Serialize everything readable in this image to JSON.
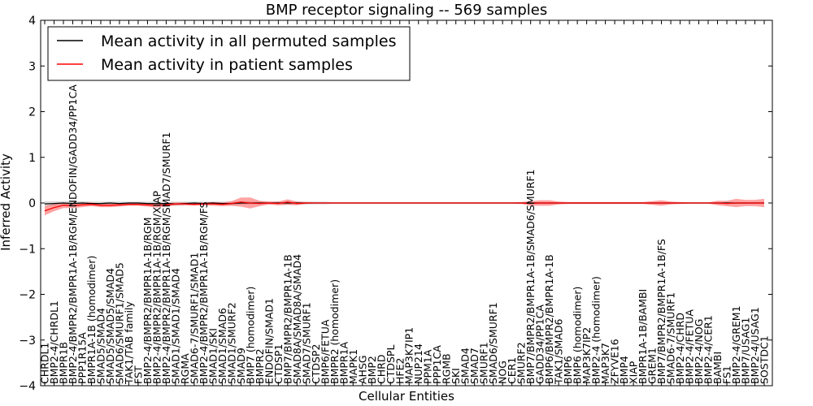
{
  "chart_data": {
    "type": "line",
    "title": "BMP receptor signaling -- 569 samples",
    "xlabel": "Cellular Entities",
    "ylabel": "Inferred Activity",
    "ylim": [
      -4,
      4
    ],
    "yticks": [
      -4,
      -3,
      -2,
      -1,
      0,
      1,
      2,
      3,
      4
    ],
    "ytick_labels": [
      "−4",
      "−3",
      "−2",
      "−1",
      "0",
      "1",
      "2",
      "3",
      "4"
    ],
    "legend_position": "top-left",
    "categories": [
      "CHRDL1",
      "BMP2-4/CHRDL1",
      "BMPR1B",
      "BMP2-4/BMPR2/BMPR1A-1B/RGM/ENDOFIN/GADD34/PP1CA",
      "PPP1R15A",
      "BMPR1A-1B (homodimer)",
      "SMAD5/SMAD4",
      "SMAD5/SMAD5/SMAD4",
      "SMAD6/SMURF1/SMAD5",
      "TAK1/TAB family",
      "FST",
      "BMP2-4/BMPR2/BMPR1A-1B/RGM",
      "BMP2-4/BMPR2/BMPR1A-1B/RGM/XIAP",
      "BMP2-4/BMPR2/BMPR1A-1B/RGM/SMAD7/SMURF1",
      "SMAD1/SMAD1/SMAD4",
      "RGMA",
      "SMAD6-7/SMURF1/SMAD1",
      "BMP2-4/BMPR2/BMPR1A-1B/RGM/FS",
      "SMAD1/SKI",
      "SMAD1/SMAD6",
      "SMAD1/SMURF2",
      "SMAD9",
      "BMP7 (homodimer)",
      "BMPR2",
      "ENDOFIN/SMAD1",
      "CTDSP1",
      "BMP7/BMPR2/BMPR1A-1B",
      "SMAD8A/SMAD8A/SMAD4",
      "SMAD7/SMURF1",
      "CTDSP2",
      "BMP6/FETUA",
      "BMPR2 (homodimer)",
      "BMPR1A",
      "MAPK1",
      "AHSG",
      "BMP2",
      "CHRD",
      "CTDSPL",
      "HFE2",
      "MAP3K7IP1",
      "NUP214",
      "PPM1A",
      "PPP1CA",
      "RGMB",
      "SKI",
      "SMAD4",
      "SMAD7",
      "SMURF1",
      "SMAD6/SMURF1",
      "NOG",
      "CER1",
      "SMURF2",
      "BMP7/BMPR2/BMPR1A-1B/SMAD6/SMURF1",
      "GADD34/PP1CA",
      "BMP6/BMPR2/BMPR1A-1B",
      "TAK1/SMAD6",
      "BMP6",
      "BMP6 (homodimer)",
      "MAP3K7IP2",
      "BMP2-4 (homodimer)",
      "MAP3K7",
      "ZFYVE16",
      "BMP4",
      "XIAP",
      "BMPR1A-1B/BAMBI",
      "GREM1",
      "BMP7/BMPR2/BMPR1A-1B/FS",
      "SMAD6-7/SMURF1",
      "BMP2-4/CHRD",
      "BMP2-4/FETUA",
      "BMP2-4/NOG",
      "BMP2-4/CER1",
      "BAMBI",
      "FS1",
      "BMP2-4/GREM1",
      "BMP7/USAG1",
      "BMP2-4/USAG1",
      "SOSTDC1"
    ],
    "series": [
      {
        "name": "Mean activity in all permuted samples",
        "color": "#000000",
        "values": [
          -0.02,
          -0.01,
          0.0,
          -0.01,
          0.0,
          -0.01,
          -0.01,
          0.0,
          -0.01,
          0.0,
          0.0,
          -0.01,
          -0.01,
          -0.01,
          -0.02,
          -0.01,
          0.0,
          -0.01,
          0.0,
          -0.01,
          -0.01,
          0.0,
          0.0,
          0.0,
          0.0,
          0.0,
          0.0,
          0.0,
          0.0,
          0.0,
          0.0,
          0.0,
          0.0,
          0.0,
          0.0,
          0.0,
          0.0,
          0.0,
          0.0,
          0.0,
          0.0,
          0.0,
          0.0,
          0.0,
          0.0,
          0.0,
          0.0,
          0.0,
          0.0,
          0.0,
          0.0,
          0.0,
          0.0,
          0.0,
          0.0,
          0.0,
          0.0,
          0.0,
          0.0,
          0.0,
          0.0,
          0.0,
          0.0,
          0.0,
          0.0,
          0.0,
          0.0,
          0.0,
          0.0,
          0.0,
          0.0,
          0.0,
          0.0,
          0.0,
          0.0,
          0.0,
          0.0,
          0.0
        ],
        "band": [
          0.06,
          0.05,
          0.04,
          0.05,
          0.04,
          0.04,
          0.04,
          0.03,
          0.04,
          0.03,
          0.03,
          0.04,
          0.04,
          0.04,
          0.05,
          0.04,
          0.03,
          0.04,
          0.03,
          0.04,
          0.04,
          0.03,
          0.03,
          0.03,
          0.03,
          0.03,
          0.03,
          0.03,
          0.03,
          0.03,
          0.03,
          0.02,
          0.02,
          0.02,
          0.02,
          0.02,
          0.02,
          0.02,
          0.02,
          0.02,
          0.02,
          0.02,
          0.02,
          0.02,
          0.02,
          0.02,
          0.02,
          0.02,
          0.02,
          0.02,
          0.02,
          0.02,
          0.02,
          0.02,
          0.02,
          0.02,
          0.02,
          0.02,
          0.02,
          0.02,
          0.02,
          0.02,
          0.02,
          0.02,
          0.02,
          0.02,
          0.02,
          0.02,
          0.02,
          0.02,
          0.02,
          0.02,
          0.02,
          0.02,
          0.02,
          0.02,
          0.02,
          0.02
        ]
      },
      {
        "name": "Mean activity in patient samples",
        "color": "#ff0000",
        "values": [
          -0.17,
          -0.1,
          -0.05,
          -0.06,
          -0.04,
          -0.03,
          -0.05,
          -0.05,
          -0.04,
          -0.03,
          -0.03,
          -0.04,
          -0.05,
          -0.04,
          -0.02,
          -0.02,
          -0.03,
          -0.02,
          -0.02,
          -0.03,
          -0.01,
          0.02,
          0.0,
          -0.01,
          0.0,
          -0.01,
          0.02,
          -0.01,
          0.0,
          0.0,
          0.0,
          0.0,
          0.0,
          0.0,
          0.0,
          0.0,
          0.0,
          0.0,
          0.0,
          0.0,
          0.0,
          0.0,
          0.0,
          0.0,
          0.0,
          0.0,
          0.0,
          0.0,
          0.0,
          0.0,
          0.0,
          0.0,
          -0.01,
          0.0,
          0.0,
          0.0,
          0.0,
          0.0,
          0.0,
          0.0,
          0.0,
          0.0,
          0.0,
          0.0,
          0.0,
          0.0,
          0.0,
          0.0,
          0.0,
          0.0,
          0.0,
          0.0,
          0.0,
          -0.01,
          0.0,
          0.0,
          0.0,
          0.0
        ],
        "band": [
          0.1,
          0.08,
          0.06,
          0.05,
          0.05,
          0.04,
          0.04,
          0.04,
          0.04,
          0.03,
          0.03,
          0.04,
          0.05,
          0.04,
          0.03,
          0.03,
          0.03,
          0.03,
          0.04,
          0.04,
          0.05,
          0.1,
          0.12,
          0.06,
          0.03,
          0.04,
          0.06,
          0.04,
          0.02,
          0.01,
          0.01,
          0.01,
          0.01,
          0.01,
          0.01,
          0.01,
          0.01,
          0.01,
          0.01,
          0.01,
          0.01,
          0.01,
          0.01,
          0.01,
          0.01,
          0.01,
          0.01,
          0.01,
          0.01,
          0.01,
          0.01,
          0.02,
          0.05,
          0.06,
          0.06,
          0.03,
          0.02,
          0.02,
          0.02,
          0.02,
          0.02,
          0.02,
          0.02,
          0.02,
          0.02,
          0.04,
          0.06,
          0.03,
          0.02,
          0.01,
          0.01,
          0.01,
          0.05,
          0.06,
          0.09,
          0.07,
          0.07,
          0.09
        ]
      }
    ]
  }
}
